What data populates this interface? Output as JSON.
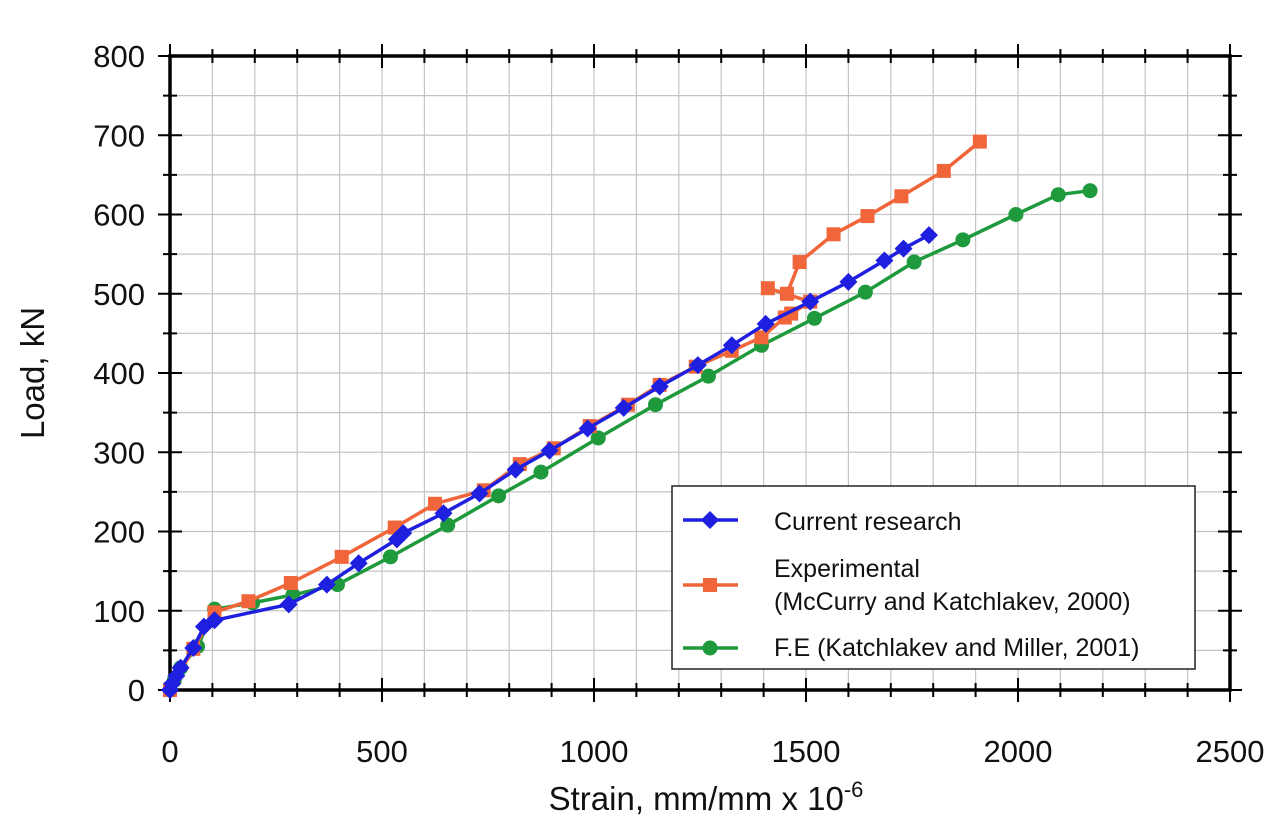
{
  "chart_data": {
    "type": "line",
    "title": "",
    "xlabel": "Strain, mm/mm x 10",
    "xlabel_exponent": "-6",
    "ylabel": "Load, kN",
    "xlim": [
      0,
      2500
    ],
    "ylim": [
      0,
      800
    ],
    "x_ticks": [
      0,
      500,
      1000,
      1500,
      2000,
      2500
    ],
    "x_tick_labels": [
      "0",
      "500",
      "1000",
      "1500",
      "2000",
      "2500"
    ],
    "y_ticks": [
      0,
      100,
      200,
      300,
      400,
      500,
      600,
      700,
      800
    ],
    "y_tick_labels": [
      "0",
      "100",
      "200",
      "300",
      "400",
      "500",
      "600",
      "700",
      "800"
    ],
    "grid": true,
    "legend_position": "bottom-right",
    "series": [
      {
        "name": "Current research",
        "color": "#1f1fe0",
        "marker": "diamond",
        "x": [
          0,
          5,
          15,
          25,
          55,
          80,
          105,
          280,
          370,
          445,
          535,
          550,
          645,
          730,
          815,
          895,
          985,
          1070,
          1155,
          1245,
          1325,
          1405,
          1510,
          1600,
          1685,
          1730,
          1790
        ],
        "y": [
          0,
          8,
          18,
          28,
          53,
          80,
          88,
          108,
          133,
          160,
          190,
          198,
          223,
          248,
          278,
          302,
          330,
          356,
          383,
          410,
          435,
          462,
          490,
          515,
          542,
          557,
          574
        ]
      },
      {
        "name": "Experimental",
        "name_line2": "(McCurry and Katchlakev, 2000)",
        "color": "#f0653a",
        "marker": "square",
        "x": [
          0,
          55,
          105,
          185,
          285,
          405,
          530,
          625,
          740,
          825,
          905,
          990,
          1080,
          1155,
          1240,
          1325,
          1395,
          1450,
          1465,
          1510,
          1410,
          1455,
          1485,
          1565,
          1645,
          1725,
          1825,
          1910
        ],
        "y": [
          0,
          52,
          98,
          112,
          135,
          168,
          205,
          235,
          252,
          285,
          305,
          333,
          360,
          385,
          408,
          428,
          445,
          470,
          475,
          490,
          507,
          500,
          540,
          575,
          598,
          623,
          655,
          692
        ]
      },
      {
        "name": "F.E (Katchlakev and Miller, 2001)",
        "color": "#1e9a3c",
        "marker": "circle",
        "x": [
          0,
          10,
          25,
          65,
          105,
          195,
          290,
          395,
          520,
          655,
          775,
          875,
          1010,
          1145,
          1270,
          1395,
          1520,
          1640,
          1755,
          1870,
          1995,
          2095,
          2170
        ],
        "y": [
          0,
          12,
          28,
          55,
          102,
          110,
          120,
          133,
          168,
          208,
          245,
          275,
          318,
          360,
          396,
          435,
          469,
          502,
          540,
          568,
          600,
          625,
          630
        ]
      }
    ]
  }
}
